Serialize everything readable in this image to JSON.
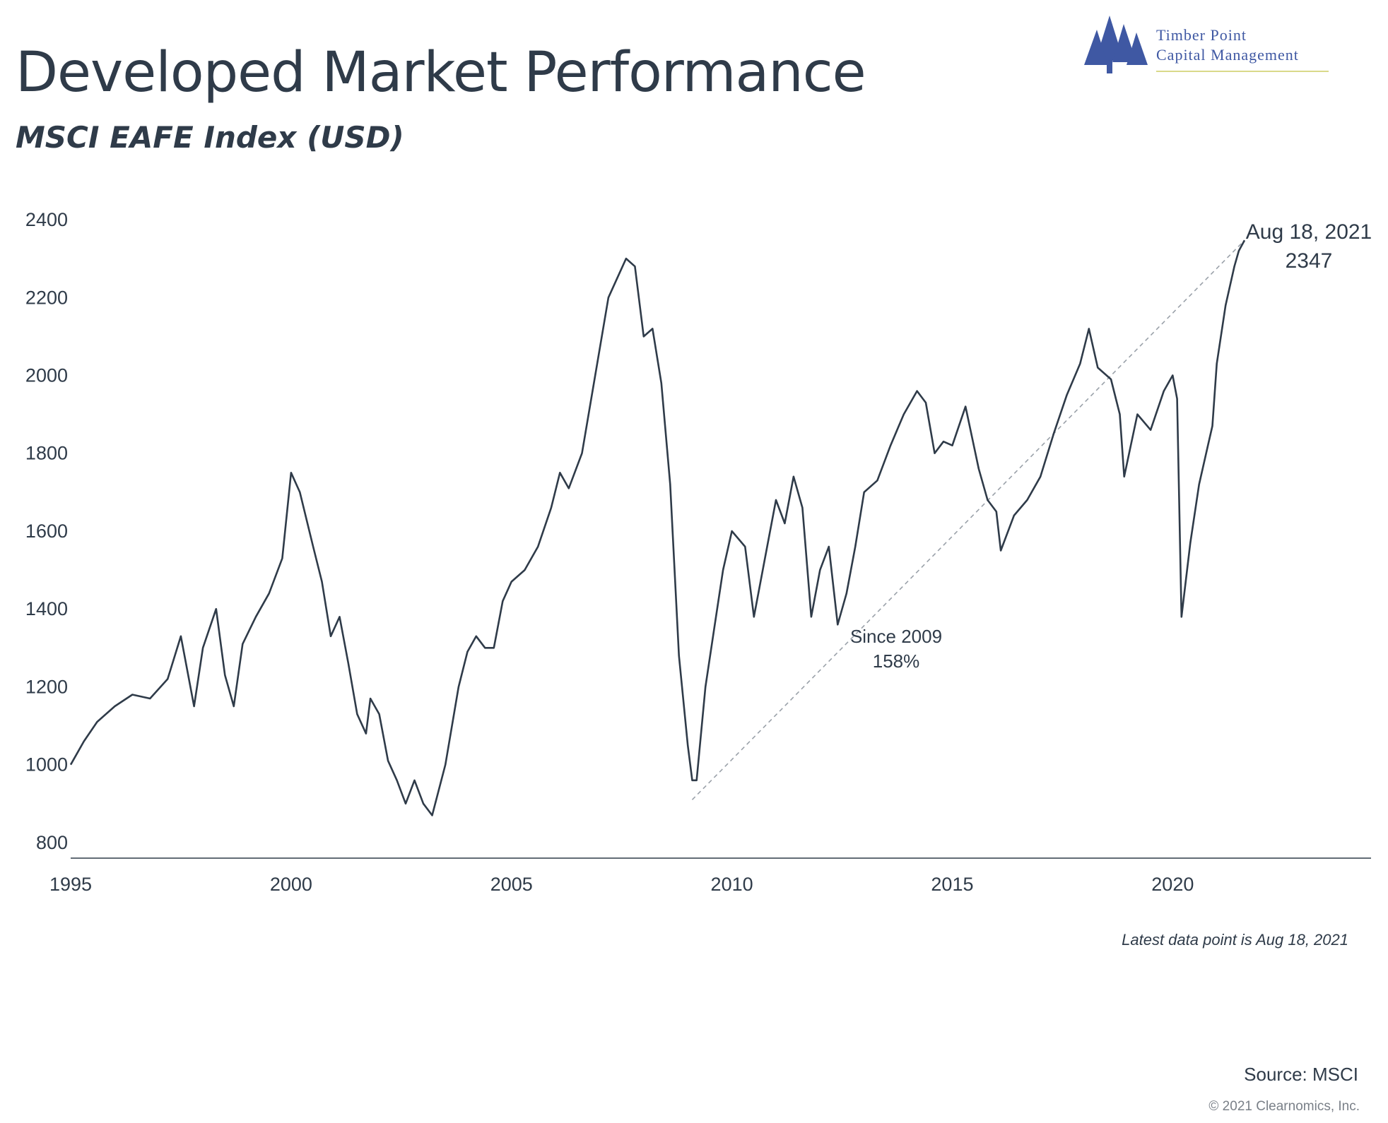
{
  "header": {
    "title": "Developed Market Performance",
    "subtitle": "MSCI EAFE Index (USD)"
  },
  "logo": {
    "line1": "Timber Point",
    "line2": "Capital Management",
    "icon": "pine-trees-icon",
    "color": "#3f58a3"
  },
  "chart_data": {
    "type": "line",
    "title": "Developed Market Performance",
    "subtitle": "MSCI EAFE Index (USD)",
    "xlabel": "",
    "ylabel": "",
    "xlim": [
      1995.0,
      2024.5
    ],
    "ylim": [
      760,
      2420
    ],
    "x_ticks": [
      "1995",
      "2000",
      "2005",
      "2010",
      "2015",
      "2020"
    ],
    "y_ticks": [
      "800",
      "1000",
      "1200",
      "1400",
      "1600",
      "1800",
      "2000",
      "2200",
      "2400"
    ],
    "grid": false,
    "line_color": "#2f3b49",
    "series": [
      {
        "name": "",
        "x": [
          1995.0,
          1995.3,
          1995.6,
          1996.0,
          1996.4,
          1996.8,
          1997.2,
          1997.5,
          1997.8,
          1998.0,
          1998.3,
          1998.5,
          1998.7,
          1998.9,
          1999.2,
          1999.5,
          1999.8,
          2000.0,
          2000.2,
          2000.5,
          2000.7,
          2000.9,
          2001.1,
          2001.3,
          2001.5,
          2001.7,
          2001.8,
          2002.0,
          2002.2,
          2002.4,
          2002.6,
          2002.8,
          2003.0,
          2003.2,
          2003.5,
          2003.8,
          2004.0,
          2004.2,
          2004.4,
          2004.6,
          2004.8,
          2005.0,
          2005.3,
          2005.6,
          2005.9,
          2006.1,
          2006.3,
          2006.6,
          2006.9,
          2007.2,
          2007.4,
          2007.6,
          2007.8,
          2008.0,
          2008.2,
          2008.4,
          2008.6,
          2008.8,
          2009.0,
          2009.1,
          2009.2,
          2009.4,
          2009.6,
          2009.8,
          2010.0,
          2010.3,
          2010.5,
          2010.8,
          2011.0,
          2011.2,
          2011.4,
          2011.6,
          2011.8,
          2012.0,
          2012.2,
          2012.4,
          2012.6,
          2012.8,
          2013.0,
          2013.3,
          2013.6,
          2013.9,
          2014.2,
          2014.4,
          2014.6,
          2014.8,
          2015.0,
          2015.3,
          2015.6,
          2015.8,
          2016.0,
          2016.1,
          2016.4,
          2016.7,
          2017.0,
          2017.3,
          2017.6,
          2017.9,
          2018.1,
          2018.3,
          2018.6,
          2018.8,
          2018.9,
          2019.2,
          2019.5,
          2019.8,
          2020.0,
          2020.1,
          2020.2,
          2020.4,
          2020.6,
          2020.8,
          2020.9,
          2021.0,
          2021.2,
          2021.4,
          2021.5,
          2021.63
        ],
        "y": [
          1000,
          1060,
          1110,
          1150,
          1180,
          1170,
          1220,
          1330,
          1150,
          1300,
          1400,
          1230,
          1150,
          1310,
          1380,
          1440,
          1530,
          1750,
          1700,
          1560,
          1470,
          1330,
          1380,
          1260,
          1130,
          1080,
          1170,
          1130,
          1010,
          960,
          900,
          960,
          900,
          870,
          1000,
          1200,
          1290,
          1330,
          1300,
          1300,
          1420,
          1470,
          1500,
          1560,
          1660,
          1750,
          1710,
          1800,
          2000,
          2200,
          2250,
          2300,
          2280,
          2100,
          2120,
          1980,
          1720,
          1280,
          1050,
          960,
          960,
          1200,
          1350,
          1500,
          1600,
          1560,
          1380,
          1560,
          1680,
          1620,
          1740,
          1660,
          1380,
          1500,
          1560,
          1360,
          1440,
          1560,
          1700,
          1730,
          1820,
          1900,
          1960,
          1930,
          1800,
          1830,
          1820,
          1920,
          1760,
          1680,
          1650,
          1550,
          1640,
          1680,
          1740,
          1850,
          1950,
          2030,
          2120,
          2020,
          1990,
          1900,
          1740,
          1900,
          1860,
          1960,
          2000,
          1940,
          1380,
          1570,
          1720,
          1820,
          1870,
          2030,
          2180,
          2280,
          2320,
          2347
        ]
      }
    ],
    "annotations": [
      {
        "text": "Aug 18, 2021",
        "x": 2021.63,
        "y": 2347
      },
      {
        "text": "2347",
        "x": 2021.63,
        "y": 2347
      },
      {
        "text": "Since 2009",
        "x": 2013.7,
        "y": 1250
      },
      {
        "text": "158%",
        "x": 2013.7,
        "y": 1250
      }
    ],
    "trendline": {
      "x": [
        2009.1,
        2021.63
      ],
      "y": [
        910,
        2347
      ],
      "style": "dashed"
    }
  },
  "footer": {
    "note": "Latest data point is Aug 18, 2021",
    "source": "Source: MSCI",
    "copyright": "© 2021 Clearnomics, Inc."
  }
}
